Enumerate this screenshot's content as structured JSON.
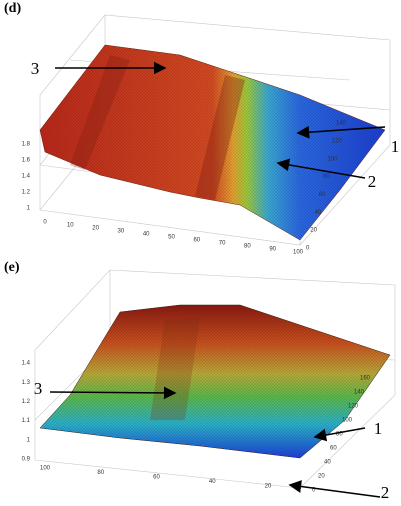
{
  "panels": [
    {
      "label": "(d)",
      "callouts": [
        "3",
        "1",
        "2"
      ],
      "z_ticks": [
        "1",
        "1.2",
        "1.4",
        "1.6",
        "1.8"
      ],
      "x_ticks": [
        "0",
        "10",
        "20",
        "30",
        "40",
        "50",
        "60",
        "70",
        "80",
        "90",
        "100"
      ],
      "y_ticks": [
        "0",
        "20",
        "40",
        "60",
        "80",
        "100",
        "120",
        "140"
      ]
    },
    {
      "label": "(e)",
      "callouts": [
        "3",
        "1",
        "2"
      ],
      "z_ticks": [
        "0.9",
        "1",
        "1.1",
        "1.2",
        "1.3",
        "1.4"
      ],
      "x_ticks": [
        "100",
        "80",
        "60",
        "40",
        "20"
      ],
      "y_ticks": [
        "0",
        "20",
        "40",
        "60",
        "80",
        "100",
        "120",
        "140",
        "160"
      ]
    }
  ]
}
